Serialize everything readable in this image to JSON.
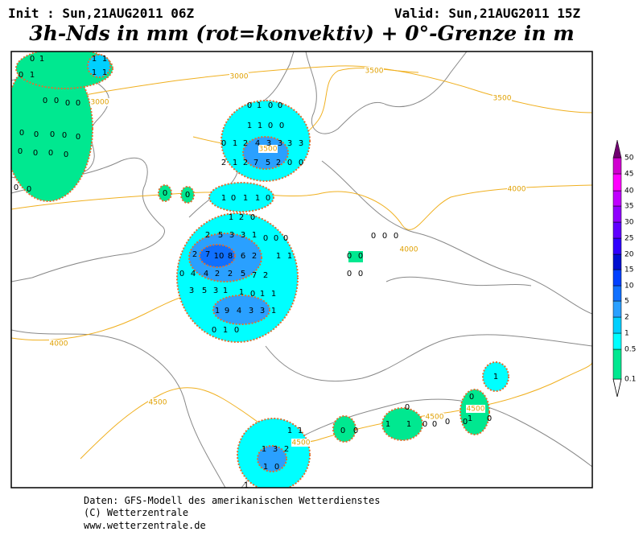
{
  "header": {
    "init": "Init : Sun,21AUG2011 06Z",
    "valid": "Valid: Sun,21AUG2011 15Z",
    "title": "3h-Nds in mm (rot=konvektiv) + 0°-Grenze in m"
  },
  "contour_labels": [
    3000,
    3000,
    3500,
    3500,
    3500,
    4000,
    4000,
    4000,
    4500,
    4500,
    4500,
    4500
  ],
  "precip_labels": [
    0,
    1,
    0,
    1,
    1,
    1,
    1,
    1,
    0,
    0,
    0,
    0,
    0,
    0,
    0,
    0,
    0,
    0,
    0,
    0,
    0,
    0,
    0,
    0,
    1,
    0,
    0,
    1,
    1,
    0,
    0,
    0,
    1,
    2,
    4,
    3,
    3,
    3,
    3,
    2,
    1,
    2,
    7,
    5,
    2,
    0,
    0,
    0,
    0,
    1,
    0,
    1,
    1,
    0,
    1,
    2,
    0,
    2,
    5,
    3,
    3,
    1,
    0,
    0,
    0,
    2,
    7,
    10,
    8,
    6,
    2,
    1,
    1,
    0,
    4,
    4,
    2,
    2,
    5,
    7,
    2,
    3,
    5,
    3,
    1,
    1,
    0,
    1,
    1,
    1,
    9,
    4,
    3,
    3,
    1,
    0,
    1,
    0,
    0,
    0,
    0,
    0,
    0,
    0,
    0,
    1,
    0,
    1,
    0,
    0,
    1,
    1,
    0,
    0,
    0,
    0,
    0,
    0,
    1,
    1,
    1,
    3,
    2,
    1,
    0,
    1
  ],
  "legend": {
    "levels": [
      0.1,
      0.5,
      1,
      2,
      5,
      10,
      15,
      20,
      25,
      30,
      35,
      40,
      45,
      50
    ],
    "colors": [
      "#00e890",
      "#00ffff",
      "#00d0ff",
      "#2aa0ff",
      "#1070ff",
      "#0040ff",
      "#0010d0",
      "#3000ff",
      "#6000ff",
      "#9000ff",
      "#c000ff",
      "#ff00ff",
      "#d000d0",
      "#a000a0"
    ],
    "top_color": "#700070"
  },
  "footer": [
    "Daten: GFS-Modell des amerikanischen Wetterdienstes",
    "(C) Wetterzentrale",
    "www.wetterzentrale.de"
  ]
}
